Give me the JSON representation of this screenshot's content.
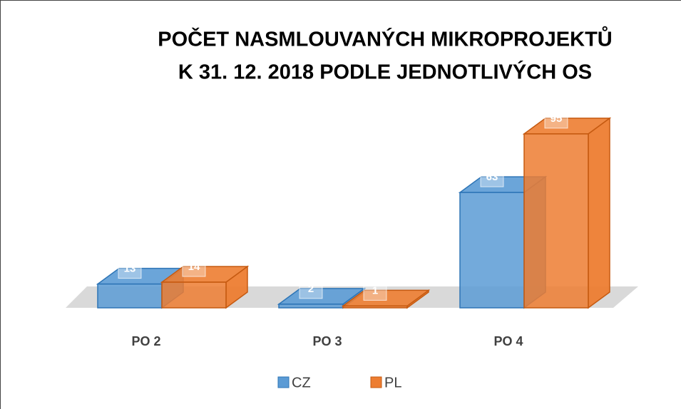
{
  "chart_data": {
    "type": "bar3d",
    "title": [
      "POČET NASMLOUVANÝCH MIKROPROJEKTŮ",
      "K 31. 12. 2018 PODLE JEDNOTLIVÝCH OS"
    ],
    "categories": [
      "PO 2",
      "PO 3",
      "PO 4"
    ],
    "series": [
      {
        "name": "CZ",
        "color": "#5b9bd5",
        "values": [
          13,
          2,
          63
        ]
      },
      {
        "name": "PL",
        "color": "#ed7d31",
        "values": [
          14,
          1,
          95
        ]
      }
    ],
    "legend": "bottom"
  }
}
